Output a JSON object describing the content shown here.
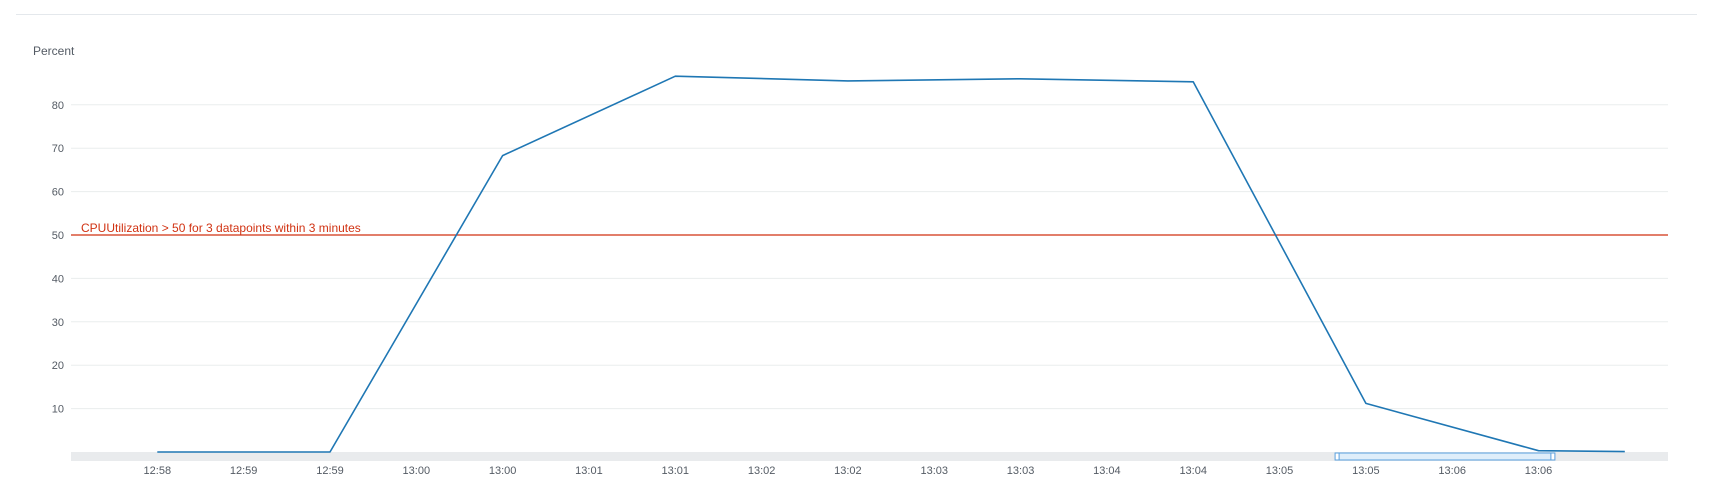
{
  "chart_data": {
    "type": "line",
    "y_unit_label": "Percent",
    "ylim": [
      0,
      90
    ],
    "y_ticks": [
      10,
      20,
      30,
      40,
      50,
      60,
      70,
      80
    ],
    "grid": true,
    "x_tick_labels": [
      "12:58",
      "12:59",
      "12:59",
      "13:00",
      "13:00",
      "13:01",
      "13:01",
      "13:02",
      "13:02",
      "13:03",
      "13:03",
      "13:04",
      "13:04",
      "13:05",
      "13:05",
      "13:06",
      "13:06"
    ],
    "series": [
      {
        "color": "#1f77b4",
        "points": [
          {
            "x": "12:58:00",
            "y": 0
          },
          {
            "x": "12:59:00",
            "y": 0
          },
          {
            "x": "13:00:00",
            "y": 68.3
          },
          {
            "x": "13:01:00",
            "y": 86.6
          },
          {
            "x": "13:02:00",
            "y": 85.5
          },
          {
            "x": "13:03:00",
            "y": 86.0
          },
          {
            "x": "13:04:00",
            "y": 85.3
          },
          {
            "x": "13:05:00",
            "y": 11.2
          },
          {
            "x": "13:06:00",
            "y": 0.3
          },
          {
            "x": "13:06:30",
            "y": 0.1
          }
        ]
      }
    ],
    "threshold": {
      "value": 50,
      "label": "CPUUtilization > 50 for 3 datapoints within 3 minutes",
      "color": "#d13212"
    },
    "brush_range": [
      "13:04:50",
      "13:06:05"
    ]
  }
}
